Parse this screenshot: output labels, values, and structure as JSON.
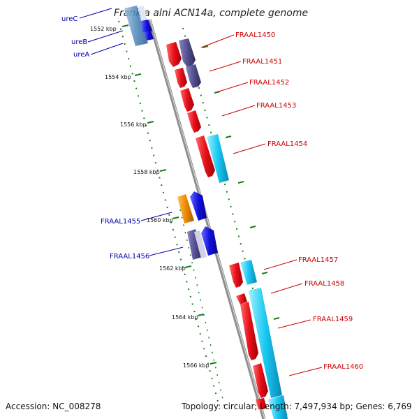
{
  "title": "Frankia alni ACN14a, complete genome",
  "footer": {
    "accession": "Accession: NC_008278",
    "summary": "Topology: circular; Length: 7,497,934 bp; Genes: 6,769"
  },
  "ticks": [
    "1552 kbp",
    "1554 kbp",
    "1556 kbp",
    "1558 kbp",
    "1560 kbp",
    "1562 kbp",
    "1564 kbp",
    "1566 kbp"
  ],
  "right_genes": [
    "FRAAL1450",
    "FRAAL1451",
    "FRAAL1452",
    "FRAAL1453",
    "FRAAL1454",
    "FRAAL1457",
    "FRAAL1458",
    "FRAAL1459",
    "FRAAL1460"
  ],
  "left_genes": [
    "ureC",
    "ureB",
    "ureA",
    "FRAAL1455",
    "FRAAL1456"
  ],
  "colors": {
    "forward_gene": "#e8101a",
    "reverse_gene": "#1010dd",
    "cds_dark": "#55508f",
    "cds_cyan": "#18c8f0",
    "cds_orange": "#f08a00",
    "ure_teal": "#4a86b8",
    "backbone": "#8f8f8f",
    "tick": "#1a7a1a"
  }
}
